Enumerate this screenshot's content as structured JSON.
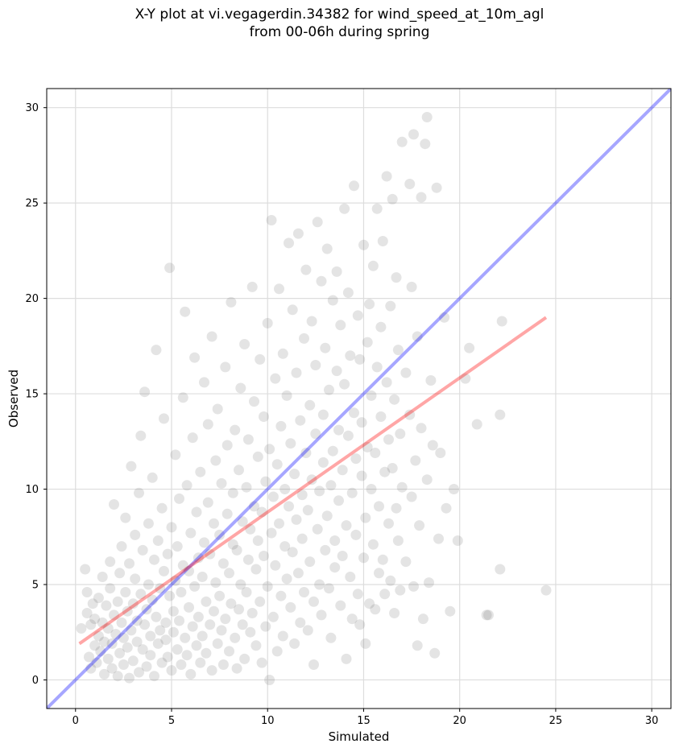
{
  "chart_data": {
    "type": "scatter",
    "title_line1": "X-Y plot at vi.vegagerdin.34382 for wind_speed_at_10m_agl",
    "title_line2": "from 00-06h during spring",
    "xlabel": "Simulated",
    "ylabel": "Observed",
    "xlim": [
      -1.5,
      31
    ],
    "ylim": [
      -1.5,
      31
    ],
    "xticks": [
      0,
      5,
      10,
      15,
      20,
      25,
      30
    ],
    "yticks": [
      0,
      5,
      10,
      15,
      20,
      25,
      30
    ],
    "grid": true,
    "point_color": "#555555",
    "point_alpha": 0.16,
    "one_to_one_line": {
      "color": "#0000ff",
      "alpha": 0.35,
      "from": [
        -1.5,
        -1.5
      ],
      "to": [
        31,
        31
      ]
    },
    "regression_line": {
      "color": "#ff0000",
      "alpha": 0.35,
      "from": [
        0.2,
        1.9
      ],
      "to": [
        24.5,
        19.0
      ]
    },
    "points": [
      [
        0.3,
        2.7
      ],
      [
        0.5,
        5.8
      ],
      [
        0.6,
        4.6
      ],
      [
        0.6,
        3.5
      ],
      [
        0.7,
        1.2
      ],
      [
        0.8,
        0.6
      ],
      [
        0.8,
        2.9
      ],
      [
        0.9,
        4.0
      ],
      [
        1.0,
        1.8
      ],
      [
        1.0,
        3.2
      ],
      [
        1.1,
        0.9
      ],
      [
        1.2,
        2.3
      ],
      [
        1.2,
        4.3
      ],
      [
        1.3,
        1.5
      ],
      [
        1.4,
        3.0
      ],
      [
        1.4,
        5.4
      ],
      [
        1.5,
        0.3
      ],
      [
        1.5,
        2.0
      ],
      [
        1.6,
        3.9
      ],
      [
        1.7,
        1.1
      ],
      [
        1.7,
        2.7
      ],
      [
        1.8,
        4.8
      ],
      [
        1.8,
        6.2
      ],
      [
        1.9,
        0.6
      ],
      [
        1.9,
        1.9
      ],
      [
        2.0,
        3.4
      ],
      [
        2.0,
        9.2
      ],
      [
        2.1,
        2.4
      ],
      [
        2.2,
        0.2
      ],
      [
        2.2,
        4.1
      ],
      [
        2.3,
        1.4
      ],
      [
        2.3,
        5.6
      ],
      [
        2.4,
        3.0
      ],
      [
        2.4,
        7.0
      ],
      [
        2.5,
        0.8
      ],
      [
        2.5,
        2.2
      ],
      [
        2.6,
        4.6
      ],
      [
        2.6,
        8.5
      ],
      [
        2.7,
        1.7
      ],
      [
        2.7,
        3.6
      ],
      [
        2.8,
        0.1
      ],
      [
        2.8,
        6.1
      ],
      [
        2.9,
        2.6
      ],
      [
        2.9,
        11.2
      ],
      [
        3.0,
        1.0
      ],
      [
        3.0,
        4.0
      ],
      [
        3.1,
        5.3
      ],
      [
        3.1,
        7.6
      ],
      [
        3.2,
        2.0
      ],
      [
        3.2,
        3.1
      ],
      [
        3.3,
        0.4
      ],
      [
        3.3,
        9.8
      ],
      [
        3.4,
        4.5
      ],
      [
        3.4,
        12.8
      ],
      [
        3.5,
        1.6
      ],
      [
        3.5,
        6.8
      ],
      [
        3.6,
        2.9
      ],
      [
        3.6,
        15.1
      ],
      [
        3.7,
        0.7
      ],
      [
        3.7,
        3.7
      ],
      [
        3.8,
        5.0
      ],
      [
        3.8,
        8.2
      ],
      [
        3.9,
        1.3
      ],
      [
        3.9,
        2.3
      ],
      [
        4.0,
        4.2
      ],
      [
        4.0,
        10.6
      ],
      [
        4.1,
        0.2
      ],
      [
        4.1,
        6.3
      ],
      [
        4.2,
        3.3
      ],
      [
        4.2,
        17.3
      ],
      [
        4.3,
        1.9
      ],
      [
        4.3,
        7.3
      ],
      [
        4.4,
        2.6
      ],
      [
        4.4,
        4.8
      ],
      [
        4.5,
        0.9
      ],
      [
        4.5,
        9.0
      ],
      [
        4.6,
        5.7
      ],
      [
        4.6,
        13.7
      ],
      [
        4.7,
        3.0
      ],
      [
        4.7,
        2.1
      ],
      [
        4.8,
        1.2
      ],
      [
        4.8,
        6.6
      ],
      [
        4.9,
        4.4
      ],
      [
        4.9,
        21.6
      ],
      [
        5.0,
        0.5
      ],
      [
        5.0,
        8.0
      ],
      [
        5.1,
        2.5
      ],
      [
        5.1,
        3.6
      ],
      [
        5.2,
        5.2
      ],
      [
        5.2,
        11.8
      ],
      [
        5.3,
        1.6
      ],
      [
        5.3,
        7.0
      ],
      [
        5.4,
        3.1
      ],
      [
        5.4,
        9.5
      ],
      [
        5.5,
        0.8
      ],
      [
        5.5,
        4.6
      ],
      [
        5.6,
        6.0
      ],
      [
        5.6,
        14.8
      ],
      [
        5.7,
        2.2
      ],
      [
        5.7,
        19.3
      ],
      [
        5.8,
        1.3
      ],
      [
        5.8,
        10.2
      ],
      [
        5.9,
        3.8
      ],
      [
        5.9,
        5.7
      ],
      [
        6.0,
        0.3
      ],
      [
        6.0,
        7.7
      ],
      [
        6.1,
        2.8
      ],
      [
        6.1,
        12.7
      ],
      [
        6.2,
        4.9
      ],
      [
        6.2,
        16.9
      ],
      [
        6.3,
        1.8
      ],
      [
        6.3,
        8.8
      ],
      [
        6.4,
        6.4
      ],
      [
        6.4,
        3.3
      ],
      [
        6.5,
        0.9
      ],
      [
        6.5,
        10.9
      ],
      [
        6.6,
        2.3
      ],
      [
        6.6,
        5.4
      ],
      [
        6.7,
        7.2
      ],
      [
        6.7,
        15.6
      ],
      [
        6.8,
        1.4
      ],
      [
        6.8,
        4.1
      ],
      [
        6.9,
        9.3
      ],
      [
        6.9,
        13.4
      ],
      [
        7.0,
        2.9
      ],
      [
        7.0,
        6.6
      ],
      [
        7.1,
        0.5
      ],
      [
        7.1,
        18.0
      ],
      [
        7.2,
        3.6
      ],
      [
        7.2,
        8.2
      ],
      [
        7.3,
        5.1
      ],
      [
        7.3,
        11.5
      ],
      [
        7.4,
        1.9
      ],
      [
        7.4,
        14.2
      ],
      [
        7.5,
        4.4
      ],
      [
        7.5,
        7.6
      ],
      [
        7.6,
        2.6
      ],
      [
        7.6,
        10.3
      ],
      [
        7.7,
        0.8
      ],
      [
        7.7,
        6.1
      ],
      [
        7.8,
        3.2
      ],
      [
        7.8,
        16.4
      ],
      [
        7.9,
        8.7
      ],
      [
        7.9,
        12.3
      ],
      [
        8.0,
        1.5
      ],
      [
        8.0,
        5.6
      ],
      [
        8.1,
        4.0
      ],
      [
        8.1,
        19.8
      ],
      [
        8.2,
        7.1
      ],
      [
        8.2,
        9.8
      ],
      [
        8.3,
        2.2
      ],
      [
        8.3,
        13.1
      ],
      [
        8.4,
        0.6
      ],
      [
        8.4,
        6.8
      ],
      [
        8.5,
        3.7
      ],
      [
        8.5,
        11.0
      ],
      [
        8.6,
        5.0
      ],
      [
        8.6,
        15.3
      ],
      [
        8.7,
        8.3
      ],
      [
        8.7,
        2.9
      ],
      [
        8.8,
        1.1
      ],
      [
        8.8,
        17.6
      ],
      [
        8.9,
        4.6
      ],
      [
        8.9,
        10.1
      ],
      [
        9.0,
        6.3
      ],
      [
        9.0,
        12.6
      ],
      [
        9.1,
        2.5
      ],
      [
        9.1,
        7.9
      ],
      [
        9.2,
        20.6
      ],
      [
        9.2,
        3.5
      ],
      [
        9.3,
        9.1
      ],
      [
        9.3,
        14.6
      ],
      [
        9.4,
        1.8
      ],
      [
        9.4,
        5.8
      ],
      [
        9.5,
        11.7
      ],
      [
        9.5,
        7.3
      ],
      [
        9.6,
        4.1
      ],
      [
        9.6,
        16.8
      ],
      [
        9.7,
        0.9
      ],
      [
        9.7,
        8.8
      ],
      [
        9.8,
        13.8
      ],
      [
        9.8,
        6.5
      ],
      [
        9.9,
        2.8
      ],
      [
        9.9,
        10.4
      ],
      [
        10.0,
        18.7
      ],
      [
        10.0,
        4.9
      ],
      [
        10.1,
        0.0
      ],
      [
        10.1,
        12.1
      ],
      [
        10.2,
        7.7
      ],
      [
        10.2,
        24.1
      ],
      [
        10.3,
        3.3
      ],
      [
        10.3,
        9.6
      ],
      [
        10.4,
        15.8
      ],
      [
        10.4,
        6.0
      ],
      [
        10.5,
        1.5
      ],
      [
        10.5,
        11.3
      ],
      [
        10.6,
        20.5
      ],
      [
        10.6,
        8.2
      ],
      [
        10.7,
        4.4
      ],
      [
        10.7,
        13.3
      ],
      [
        10.8,
        2.3
      ],
      [
        10.8,
        17.1
      ],
      [
        10.9,
        7.0
      ],
      [
        10.9,
        10.0
      ],
      [
        11.0,
        5.3
      ],
      [
        11.0,
        14.9
      ],
      [
        11.1,
        22.9
      ],
      [
        11.1,
        9.1
      ],
      [
        11.2,
        3.8
      ],
      [
        11.2,
        12.4
      ],
      [
        11.3,
        6.7
      ],
      [
        11.3,
        19.4
      ],
      [
        11.4,
        1.9
      ],
      [
        11.4,
        10.8
      ],
      [
        11.5,
        8.4
      ],
      [
        11.5,
        16.1
      ],
      [
        11.6,
        5.6
      ],
      [
        11.6,
        23.4
      ],
      [
        11.7,
        3.0
      ],
      [
        11.7,
        13.6
      ],
      [
        11.8,
        9.7
      ],
      [
        11.8,
        7.4
      ],
      [
        11.9,
        17.9
      ],
      [
        11.9,
        4.6
      ],
      [
        12.0,
        11.9
      ],
      [
        12.0,
        21.5
      ],
      [
        12.1,
        2.6
      ],
      [
        12.1,
        8.9
      ],
      [
        12.2,
        14.4
      ],
      [
        12.2,
        6.2
      ],
      [
        12.3,
        18.8
      ],
      [
        12.3,
        10.5
      ],
      [
        12.4,
        0.8
      ],
      [
        12.4,
        4.1
      ],
      [
        12.5,
        12.9
      ],
      [
        12.5,
        16.5
      ],
      [
        12.6,
        7.9
      ],
      [
        12.6,
        24.0
      ],
      [
        12.7,
        5.0
      ],
      [
        12.7,
        9.9
      ],
      [
        12.8,
        20.9
      ],
      [
        12.8,
        3.4
      ],
      [
        12.9,
        13.9
      ],
      [
        12.9,
        11.4
      ],
      [
        13.0,
        6.8
      ],
      [
        13.0,
        17.4
      ],
      [
        13.1,
        8.6
      ],
      [
        13.1,
        22.6
      ],
      [
        13.2,
        4.8
      ],
      [
        13.2,
        15.2
      ],
      [
        13.3,
        10.2
      ],
      [
        13.3,
        2.2
      ],
      [
        13.4,
        12.0
      ],
      [
        13.4,
        19.9
      ],
      [
        13.5,
        7.3
      ],
      [
        13.5,
        5.9
      ],
      [
        13.6,
        16.2
      ],
      [
        13.6,
        21.4
      ],
      [
        13.7,
        9.4
      ],
      [
        13.7,
        13.1
      ],
      [
        13.8,
        3.9
      ],
      [
        13.8,
        18.6
      ],
      [
        13.9,
        11.0
      ],
      [
        13.9,
        6.5
      ],
      [
        14.0,
        24.7
      ],
      [
        14.0,
        15.5
      ],
      [
        14.1,
        8.1
      ],
      [
        14.1,
        1.1
      ],
      [
        14.2,
        12.8
      ],
      [
        14.2,
        20.3
      ],
      [
        14.3,
        5.4
      ],
      [
        14.3,
        17.0
      ],
      [
        14.4,
        9.8
      ],
      [
        14.4,
        3.2
      ],
      [
        14.5,
        14.0
      ],
      [
        14.5,
        25.9
      ],
      [
        14.6,
        7.6
      ],
      [
        14.6,
        11.6
      ],
      [
        14.7,
        4.5
      ],
      [
        14.7,
        19.1
      ],
      [
        14.8,
        16.8
      ],
      [
        14.8,
        2.9
      ],
      [
        14.9,
        10.7
      ],
      [
        14.9,
        13.5
      ],
      [
        15.0,
        6.4
      ],
      [
        15.0,
        22.8
      ],
      [
        15.1,
        1.9
      ],
      [
        15.1,
        8.5
      ],
      [
        15.2,
        17.7
      ],
      [
        15.2,
        12.2
      ],
      [
        15.3,
        4.0
      ],
      [
        15.3,
        19.7
      ],
      [
        15.4,
        10.0
      ],
      [
        15.4,
        14.9
      ],
      [
        15.5,
        7.1
      ],
      [
        15.5,
        21.7
      ],
      [
        15.6,
        3.7
      ],
      [
        15.6,
        11.9
      ],
      [
        15.7,
        16.4
      ],
      [
        15.7,
        24.7
      ],
      [
        15.8,
        9.1
      ],
      [
        15.8,
        5.6
      ],
      [
        15.9,
        13.8
      ],
      [
        15.9,
        18.5
      ],
      [
        16.0,
        6.3
      ],
      [
        16.0,
        23.0
      ],
      [
        16.1,
        10.9
      ],
      [
        16.1,
        4.5
      ],
      [
        16.2,
        15.6
      ],
      [
        16.2,
        26.4
      ],
      [
        16.3,
        8.2
      ],
      [
        16.3,
        12.6
      ],
      [
        16.4,
        19.6
      ],
      [
        16.4,
        5.2
      ],
      [
        16.5,
        11.1
      ],
      [
        16.5,
        25.2
      ],
      [
        16.6,
        3.5
      ],
      [
        16.6,
        14.7
      ],
      [
        16.7,
        9.0
      ],
      [
        16.7,
        21.1
      ],
      [
        16.8,
        7.3
      ],
      [
        16.8,
        17.3
      ],
      [
        16.9,
        12.9
      ],
      [
        16.9,
        4.7
      ],
      [
        17.0,
        28.2
      ],
      [
        17.0,
        10.1
      ],
      [
        17.2,
        16.1
      ],
      [
        17.2,
        6.2
      ],
      [
        17.4,
        13.9
      ],
      [
        17.4,
        26.0
      ],
      [
        17.5,
        9.6
      ],
      [
        17.5,
        20.6
      ],
      [
        17.6,
        28.6
      ],
      [
        17.6,
        4.9
      ],
      [
        17.7,
        11.5
      ],
      [
        17.8,
        1.8
      ],
      [
        17.8,
        18.0
      ],
      [
        17.9,
        8.1
      ],
      [
        18.0,
        25.3
      ],
      [
        18.0,
        13.2
      ],
      [
        18.1,
        3.2
      ],
      [
        18.2,
        28.1
      ],
      [
        18.3,
        10.5
      ],
      [
        18.3,
        29.5
      ],
      [
        18.4,
        5.1
      ],
      [
        18.5,
        15.7
      ],
      [
        18.6,
        12.3
      ],
      [
        18.7,
        1.4
      ],
      [
        18.8,
        25.8
      ],
      [
        18.9,
        7.4
      ],
      [
        19.0,
        11.9
      ],
      [
        19.2,
        19.0
      ],
      [
        19.3,
        9.0
      ],
      [
        19.5,
        3.6
      ],
      [
        19.7,
        10.0
      ],
      [
        19.9,
        7.3
      ],
      [
        20.3,
        15.8
      ],
      [
        20.5,
        17.4
      ],
      [
        20.9,
        13.4
      ],
      [
        21.4,
        3.4
      ],
      [
        21.5,
        3.4
      ],
      [
        22.1,
        5.8
      ],
      [
        22.1,
        13.9
      ],
      [
        22.2,
        18.8
      ],
      [
        24.5,
        4.7
      ]
    ]
  }
}
